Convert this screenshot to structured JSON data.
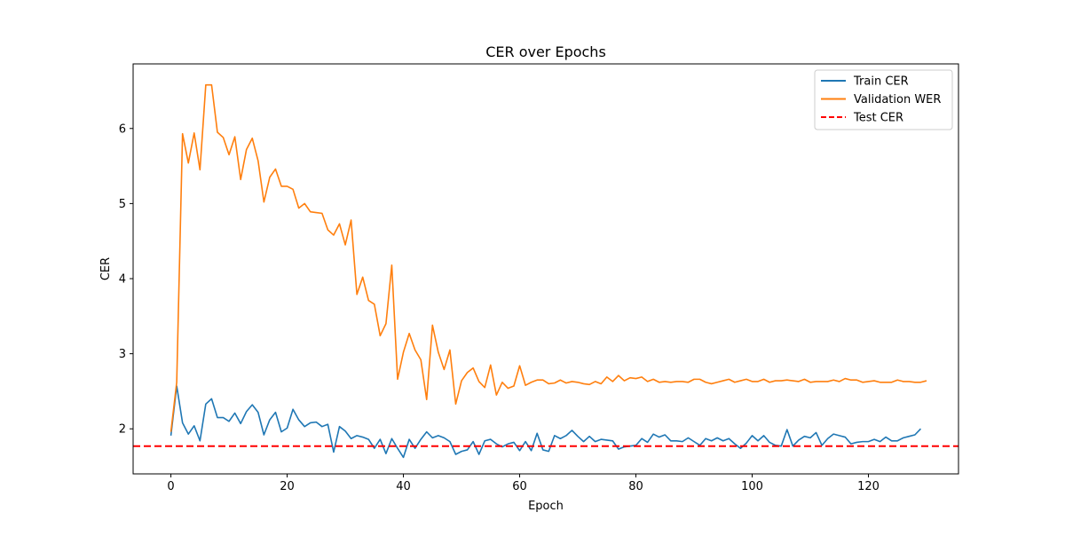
{
  "chart_data": {
    "type": "line",
    "title": "CER over Epochs",
    "xlabel": "Epoch",
    "ylabel": "CER",
    "xlim": [
      -6.5,
      135.5
    ],
    "ylim": [
      1.4,
      6.86
    ],
    "xticks": [
      0,
      20,
      40,
      60,
      80,
      100,
      120
    ],
    "yticks": [
      2,
      3,
      4,
      5,
      6
    ],
    "grid": false,
    "legend_position": "top-right",
    "series": [
      {
        "name": "Train CER",
        "color": "#1f77b4",
        "style": "solid",
        "x_start": 0,
        "x_step": 1,
        "values": [
          1.91,
          2.57,
          2.08,
          1.93,
          2.04,
          1.84,
          2.33,
          2.4,
          2.15,
          2.15,
          2.1,
          2.21,
          2.07,
          2.23,
          2.32,
          2.22,
          1.92,
          2.12,
          2.22,
          1.96,
          2.01,
          2.26,
          2.12,
          2.03,
          2.08,
          2.09,
          2.03,
          2.06,
          1.69,
          2.03,
          1.97,
          1.87,
          1.91,
          1.89,
          1.86,
          1.74,
          1.86,
          1.67,
          1.87,
          1.74,
          1.62,
          1.86,
          1.74,
          1.86,
          1.96,
          1.88,
          1.91,
          1.88,
          1.83,
          1.66,
          1.7,
          1.72,
          1.83,
          1.66,
          1.84,
          1.86,
          1.8,
          1.76,
          1.8,
          1.82,
          1.71,
          1.83,
          1.71,
          1.94,
          1.72,
          1.7,
          1.91,
          1.87,
          1.91,
          1.98,
          1.9,
          1.83,
          1.9,
          1.83,
          1.86,
          1.85,
          1.84,
          1.73,
          1.76,
          1.77,
          1.78,
          1.87,
          1.82,
          1.93,
          1.89,
          1.92,
          1.84,
          1.84,
          1.83,
          1.88,
          1.83,
          1.78,
          1.87,
          1.84,
          1.88,
          1.84,
          1.87,
          1.8,
          1.74,
          1.81,
          1.91,
          1.84,
          1.91,
          1.82,
          1.78,
          1.77,
          1.99,
          1.77,
          1.85,
          1.9,
          1.88,
          1.95,
          1.78,
          1.87,
          1.93,
          1.91,
          1.89,
          1.8,
          1.82,
          1.83,
          1.83,
          1.86,
          1.83,
          1.89,
          1.84,
          1.84,
          1.88,
          1.9,
          1.92,
          2.0
        ]
      },
      {
        "name": "Validation WER",
        "color": "#ff7f0e",
        "style": "solid",
        "x_start": 0,
        "x_step": 1,
        "values": [
          1.96,
          2.62,
          5.93,
          5.54,
          5.94,
          5.45,
          6.58,
          6.58,
          5.95,
          5.88,
          5.65,
          5.89,
          5.32,
          5.72,
          5.87,
          5.57,
          5.02,
          5.35,
          5.46,
          5.23,
          5.23,
          5.19,
          4.94,
          5.0,
          4.89,
          4.88,
          4.87,
          4.65,
          4.58,
          4.73,
          4.45,
          4.78,
          3.79,
          4.02,
          3.71,
          3.66,
          3.24,
          3.4,
          4.18,
          2.66,
          3.02,
          3.27,
          3.05,
          2.92,
          2.39,
          3.38,
          3.02,
          2.79,
          3.05,
          2.33,
          2.64,
          2.75,
          2.81,
          2.63,
          2.55,
          2.85,
          2.45,
          2.62,
          2.54,
          2.57,
          2.84,
          2.58,
          2.62,
          2.65,
          2.65,
          2.6,
          2.61,
          2.65,
          2.61,
          2.63,
          2.62,
          2.6,
          2.59,
          2.63,
          2.6,
          2.69,
          2.63,
          2.71,
          2.64,
          2.68,
          2.67,
          2.69,
          2.63,
          2.66,
          2.62,
          2.63,
          2.62,
          2.63,
          2.63,
          2.62,
          2.66,
          2.66,
          2.62,
          2.6,
          2.62,
          2.64,
          2.66,
          2.62,
          2.64,
          2.66,
          2.63,
          2.63,
          2.66,
          2.62,
          2.64,
          2.64,
          2.65,
          2.64,
          2.63,
          2.66,
          2.62,
          2.63,
          2.63,
          2.63,
          2.65,
          2.63,
          2.67,
          2.65,
          2.65,
          2.62,
          2.63,
          2.64,
          2.62,
          2.62,
          2.62,
          2.65,
          2.63,
          2.63,
          2.62,
          2.62,
          2.64
        ]
      },
      {
        "name": "Test CER",
        "color": "#ff0000",
        "style": "dashed",
        "constant": 1.77
      }
    ]
  }
}
